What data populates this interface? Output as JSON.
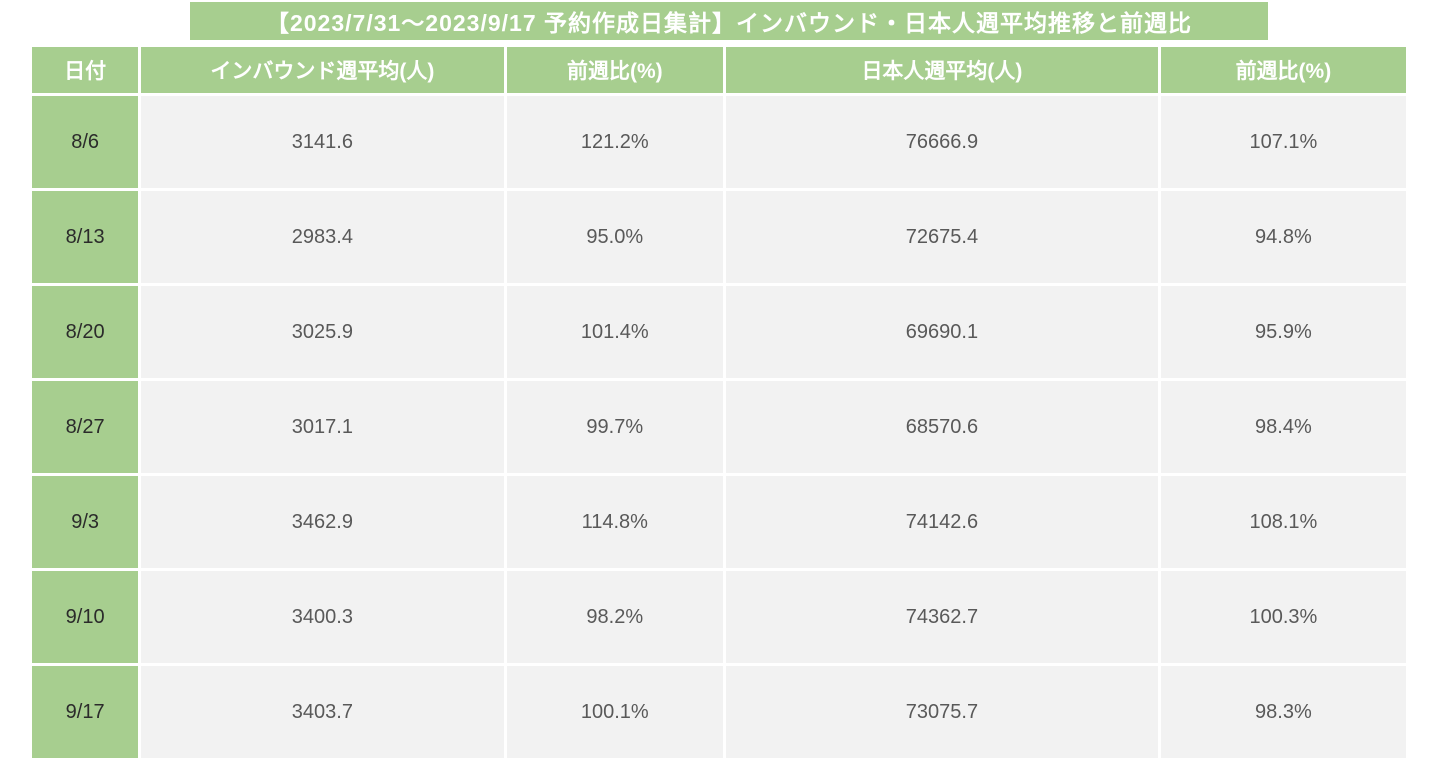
{
  "title": "【2023/7/31〜2023/9/17 予約作成日集計】インバウンド・日本人週平均推移と前週比",
  "colors": {
    "header_green": "#a7ce8f",
    "row_bg": "#f2f2f2",
    "header_text": "#ffffff",
    "data_text": "#595959",
    "date_text": "#2b2b2b"
  },
  "table": {
    "headers": [
      "日付",
      "インバウンド週平均(人)",
      "前週比(%)",
      "日本人週平均(人)",
      "前週比(%)"
    ],
    "rows": [
      {
        "date": "8/6",
        "inbound_avg": "3141.6",
        "inbound_wow": "121.2%",
        "japanese_avg": "76666.9",
        "japanese_wow": "107.1%"
      },
      {
        "date": "8/13",
        "inbound_avg": "2983.4",
        "inbound_wow": "95.0%",
        "japanese_avg": "72675.4",
        "japanese_wow": "94.8%"
      },
      {
        "date": "8/20",
        "inbound_avg": "3025.9",
        "inbound_wow": "101.4%",
        "japanese_avg": "69690.1",
        "japanese_wow": "95.9%"
      },
      {
        "date": "8/27",
        "inbound_avg": "3017.1",
        "inbound_wow": "99.7%",
        "japanese_avg": "68570.6",
        "japanese_wow": "98.4%"
      },
      {
        "date": "9/3",
        "inbound_avg": "3462.9",
        "inbound_wow": "114.8%",
        "japanese_avg": "74142.6",
        "japanese_wow": "108.1%"
      },
      {
        "date": "9/10",
        "inbound_avg": "3400.3",
        "inbound_wow": "98.2%",
        "japanese_avg": "74362.7",
        "japanese_wow": "100.3%"
      },
      {
        "date": "9/17",
        "inbound_avg": "3403.7",
        "inbound_wow": "100.1%",
        "japanese_avg": "73075.7",
        "japanese_wow": "98.3%"
      }
    ]
  },
  "chart_data": {
    "type": "table",
    "title": "【2023/7/31〜2023/9/17 予約作成日集計】インバウンド・日本人週平均推移と前週比",
    "columns": [
      "日付",
      "インバウンド週平均(人)",
      "前週比(%)",
      "日本人週平均(人)",
      "前週比(%)"
    ],
    "rows": [
      [
        "8/6",
        3141.6,
        121.2,
        76666.9,
        107.1
      ],
      [
        "8/13",
        2983.4,
        95.0,
        72675.4,
        94.8
      ],
      [
        "8/20",
        3025.9,
        101.4,
        69690.1,
        95.9
      ],
      [
        "8/27",
        3017.1,
        99.7,
        68570.6,
        98.4
      ],
      [
        "9/3",
        3462.9,
        114.8,
        74142.6,
        108.1
      ],
      [
        "9/10",
        3400.3,
        98.2,
        74362.7,
        100.3
      ],
      [
        "9/17",
        3403.7,
        100.1,
        73075.7,
        98.3
      ]
    ]
  }
}
